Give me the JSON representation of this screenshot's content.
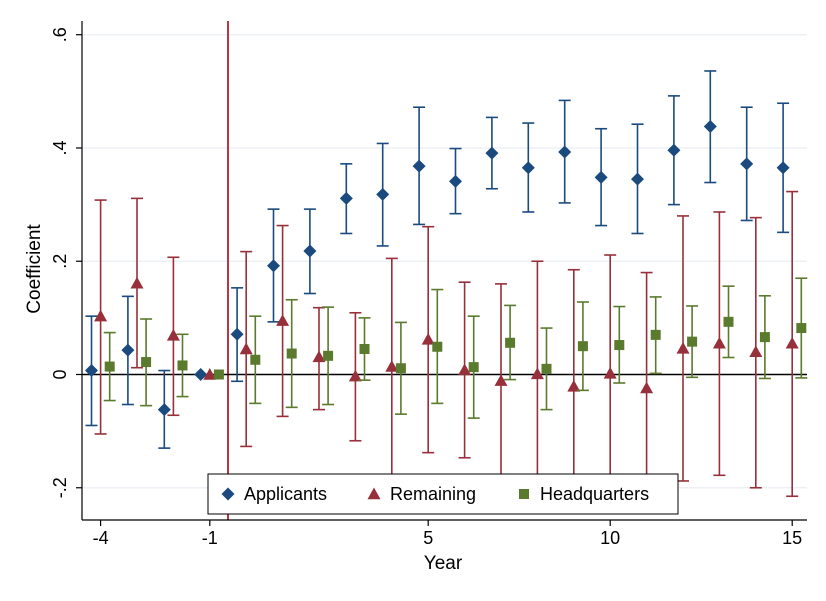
{
  "chart_data": {
    "type": "scatter",
    "xlabel": "Year",
    "ylabel": "Coefficient",
    "xlim": [
      -4.3,
      15.6
    ],
    "ylim": [
      -0.255,
      0.625
    ],
    "x_ticks": [
      {
        "value": -4,
        "label": "-4"
      },
      {
        "value": -1,
        "label": "-1"
      },
      {
        "value": 5,
        "label": "5"
      },
      {
        "value": 10,
        "label": "10"
      },
      {
        "value": 15,
        "label": "15"
      }
    ],
    "y_ticks": [
      {
        "value": 0.6,
        "label": ".6"
      },
      {
        "value": 0.4,
        "label": ".4"
      },
      {
        "value": 0.2,
        "label": ".2"
      },
      {
        "value": 0,
        "label": "0"
      },
      {
        "value": -0.2,
        "label": "-.2"
      }
    ],
    "gridlines": true,
    "zero_line": true,
    "reference_line_x": -0.5,
    "legend_position": "bottom",
    "colors": {
      "Applicants": "#1a4a7e",
      "Remaining": "#97303a",
      "Headquarters": "#5a7a2e",
      "reference_line": "#b21f2e",
      "grid": "#eaeef2"
    },
    "series": [
      {
        "name": "Applicants",
        "marker": "diamond",
        "points": [
          {
            "x": -4.25,
            "y": 0.007,
            "lo": -0.09,
            "hi": 0.103
          },
          {
            "x": -3.25,
            "y": 0.043,
            "lo": -0.053,
            "hi": 0.138
          },
          {
            "x": -2.25,
            "y": -0.062,
            "lo": -0.13,
            "hi": 0.007
          },
          {
            "x": -1.25,
            "y": 0.0,
            "lo": 0.0,
            "hi": 0.0
          },
          {
            "x": -0.25,
            "y": 0.071,
            "lo": -0.012,
            "hi": 0.153
          },
          {
            "x": 0.75,
            "y": 0.192,
            "lo": 0.093,
            "hi": 0.292
          },
          {
            "x": 1.75,
            "y": 0.218,
            "lo": 0.143,
            "hi": 0.292
          },
          {
            "x": 2.75,
            "y": 0.311,
            "lo": 0.249,
            "hi": 0.372
          },
          {
            "x": 3.75,
            "y": 0.318,
            "lo": 0.227,
            "hi": 0.408
          },
          {
            "x": 4.75,
            "y": 0.368,
            "lo": 0.265,
            "hi": 0.472
          },
          {
            "x": 5.75,
            "y": 0.341,
            "lo": 0.284,
            "hi": 0.399
          },
          {
            "x": 6.75,
            "y": 0.391,
            "lo": 0.328,
            "hi": 0.454
          },
          {
            "x": 7.75,
            "y": 0.365,
            "lo": 0.287,
            "hi": 0.444
          },
          {
            "x": 8.75,
            "y": 0.393,
            "lo": 0.303,
            "hi": 0.484
          },
          {
            "x": 9.75,
            "y": 0.348,
            "lo": 0.263,
            "hi": 0.434
          },
          {
            "x": 10.75,
            "y": 0.345,
            "lo": 0.249,
            "hi": 0.442
          },
          {
            "x": 11.75,
            "y": 0.396,
            "lo": 0.3,
            "hi": 0.492
          },
          {
            "x": 12.75,
            "y": 0.438,
            "lo": 0.339,
            "hi": 0.536
          },
          {
            "x": 13.75,
            "y": 0.372,
            "lo": 0.272,
            "hi": 0.472
          },
          {
            "x": 14.75,
            "y": 0.365,
            "lo": 0.251,
            "hi": 0.479
          }
        ]
      },
      {
        "name": "Remaining",
        "marker": "triangle",
        "points": [
          {
            "x": -4.0,
            "y": 0.103,
            "lo": -0.105,
            "hi": 0.308
          },
          {
            "x": -3.0,
            "y": 0.161,
            "lo": 0.012,
            "hi": 0.311
          },
          {
            "x": -2.0,
            "y": 0.069,
            "lo": -0.072,
            "hi": 0.207
          },
          {
            "x": -1.0,
            "y": 0.0,
            "lo": 0.0,
            "hi": 0.0
          },
          {
            "x": 0.0,
            "y": 0.045,
            "lo": -0.127,
            "hi": 0.217
          },
          {
            "x": 1.0,
            "y": 0.095,
            "lo": -0.074,
            "hi": 0.263
          },
          {
            "x": 2.0,
            "y": 0.031,
            "lo": -0.062,
            "hi": 0.118
          },
          {
            "x": 3.0,
            "y": -0.003,
            "lo": -0.117,
            "hi": 0.109
          },
          {
            "x": 4.0,
            "y": 0.014,
            "lo": -0.18,
            "hi": 0.205
          },
          {
            "x": 5.0,
            "y": 0.062,
            "lo": -0.138,
            "hi": 0.261
          },
          {
            "x": 6.0,
            "y": 0.008,
            "lo": -0.147,
            "hi": 0.163
          },
          {
            "x": 7.0,
            "y": -0.011,
            "lo": -0.18,
            "hi": 0.16
          },
          {
            "x": 8.0,
            "y": 0.001,
            "lo": -0.18,
            "hi": 0.2
          },
          {
            "x": 9.0,
            "y": -0.021,
            "lo": -0.18,
            "hi": 0.185
          },
          {
            "x": 10.0,
            "y": 0.002,
            "lo": -0.18,
            "hi": 0.211
          },
          {
            "x": 11.0,
            "y": -0.024,
            "lo": -0.18,
            "hi": 0.18
          },
          {
            "x": 12.0,
            "y": 0.046,
            "lo": -0.188,
            "hi": 0.28
          },
          {
            "x": 13.0,
            "y": 0.055,
            "lo": -0.178,
            "hi": 0.287
          },
          {
            "x": 14.0,
            "y": 0.04,
            "lo": -0.2,
            "hi": 0.277
          },
          {
            "x": 15.0,
            "y": 0.055,
            "lo": -0.215,
            "hi": 0.323
          }
        ]
      },
      {
        "name": "Headquarters",
        "marker": "square",
        "points": [
          {
            "x": -3.75,
            "y": 0.014,
            "lo": -0.046,
            "hi": 0.074
          },
          {
            "x": -2.75,
            "y": 0.022,
            "lo": -0.055,
            "hi": 0.098
          },
          {
            "x": -1.75,
            "y": 0.016,
            "lo": -0.039,
            "hi": 0.071
          },
          {
            "x": -0.75,
            "y": 0.0,
            "lo": 0.0,
            "hi": 0.0
          },
          {
            "x": 0.25,
            "y": 0.026,
            "lo": -0.051,
            "hi": 0.103
          },
          {
            "x": 1.25,
            "y": 0.037,
            "lo": -0.058,
            "hi": 0.132
          },
          {
            "x": 2.25,
            "y": 0.033,
            "lo": -0.053,
            "hi": 0.119
          },
          {
            "x": 3.25,
            "y": 0.045,
            "lo": -0.01,
            "hi": 0.1
          },
          {
            "x": 4.25,
            "y": 0.011,
            "lo": -0.07,
            "hi": 0.092
          },
          {
            "x": 5.25,
            "y": 0.049,
            "lo": -0.051,
            "hi": 0.15
          },
          {
            "x": 6.25,
            "y": 0.013,
            "lo": -0.077,
            "hi": 0.103
          },
          {
            "x": 7.25,
            "y": 0.056,
            "lo": -0.009,
            "hi": 0.122
          },
          {
            "x": 8.25,
            "y": 0.01,
            "lo": -0.062,
            "hi": 0.082
          },
          {
            "x": 9.25,
            "y": 0.05,
            "lo": -0.028,
            "hi": 0.128
          },
          {
            "x": 10.25,
            "y": 0.052,
            "lo": -0.015,
            "hi": 0.12
          },
          {
            "x": 11.25,
            "y": 0.07,
            "lo": 0.002,
            "hi": 0.137
          },
          {
            "x": 12.25,
            "y": 0.058,
            "lo": -0.005,
            "hi": 0.121
          },
          {
            "x": 13.25,
            "y": 0.093,
            "lo": 0.03,
            "hi": 0.156
          },
          {
            "x": 14.25,
            "y": 0.066,
            "lo": -0.007,
            "hi": 0.139
          },
          {
            "x": 15.25,
            "y": 0.082,
            "lo": -0.006,
            "hi": 0.17
          }
        ]
      }
    ]
  }
}
